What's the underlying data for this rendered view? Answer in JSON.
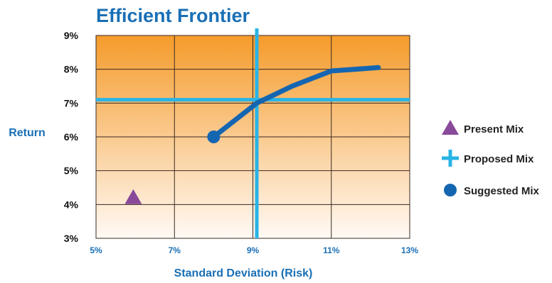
{
  "chart_data": {
    "type": "line",
    "title": "Efficient Frontier",
    "xlabel": "Standard Deviation (Risk)",
    "ylabel": "Return",
    "xlim": [
      5,
      13
    ],
    "ylim": [
      3,
      9
    ],
    "x_ticks": [
      5,
      7,
      9,
      11,
      13
    ],
    "y_ticks": [
      3,
      4,
      5,
      6,
      7,
      8,
      9
    ],
    "x_tick_labels": [
      "5%",
      "7%",
      "9%",
      "11%",
      "13%"
    ],
    "y_tick_labels": [
      "3%",
      "4%",
      "5%",
      "6%",
      "7%",
      "8%",
      "9%"
    ],
    "grid": true,
    "legend_position": "right",
    "series": [
      {
        "name": "Suggested Mix",
        "kind": "line",
        "color": "#1566b1",
        "x": [
          8.0,
          9.1,
          10.0,
          11.0,
          12.2
        ],
        "y": [
          6.0,
          7.0,
          7.5,
          7.95,
          8.05
        ]
      },
      {
        "name": "Present Mix",
        "kind": "marker",
        "marker": "triangle",
        "color": "#8a4a9a",
        "x": [
          5.95
        ],
        "y": [
          4.2
        ]
      },
      {
        "name": "Proposed Mix",
        "kind": "crosshair",
        "color": "#29b4e6",
        "x": [
          9.1
        ],
        "y": [
          7.1
        ]
      }
    ],
    "legend": [
      {
        "label": "Present Mix",
        "marker": "triangle",
        "color": "#8a4a9a"
      },
      {
        "label": "Proposed Mix",
        "marker": "cross",
        "color": "#29b4e6"
      },
      {
        "label": "Suggested Mix",
        "marker": "circle",
        "color": "#1566b1"
      }
    ],
    "colors": {
      "gradient_top": "#f59b2b",
      "gradient_bottom": "#fffaf5",
      "grid": "#3a2a20"
    }
  }
}
